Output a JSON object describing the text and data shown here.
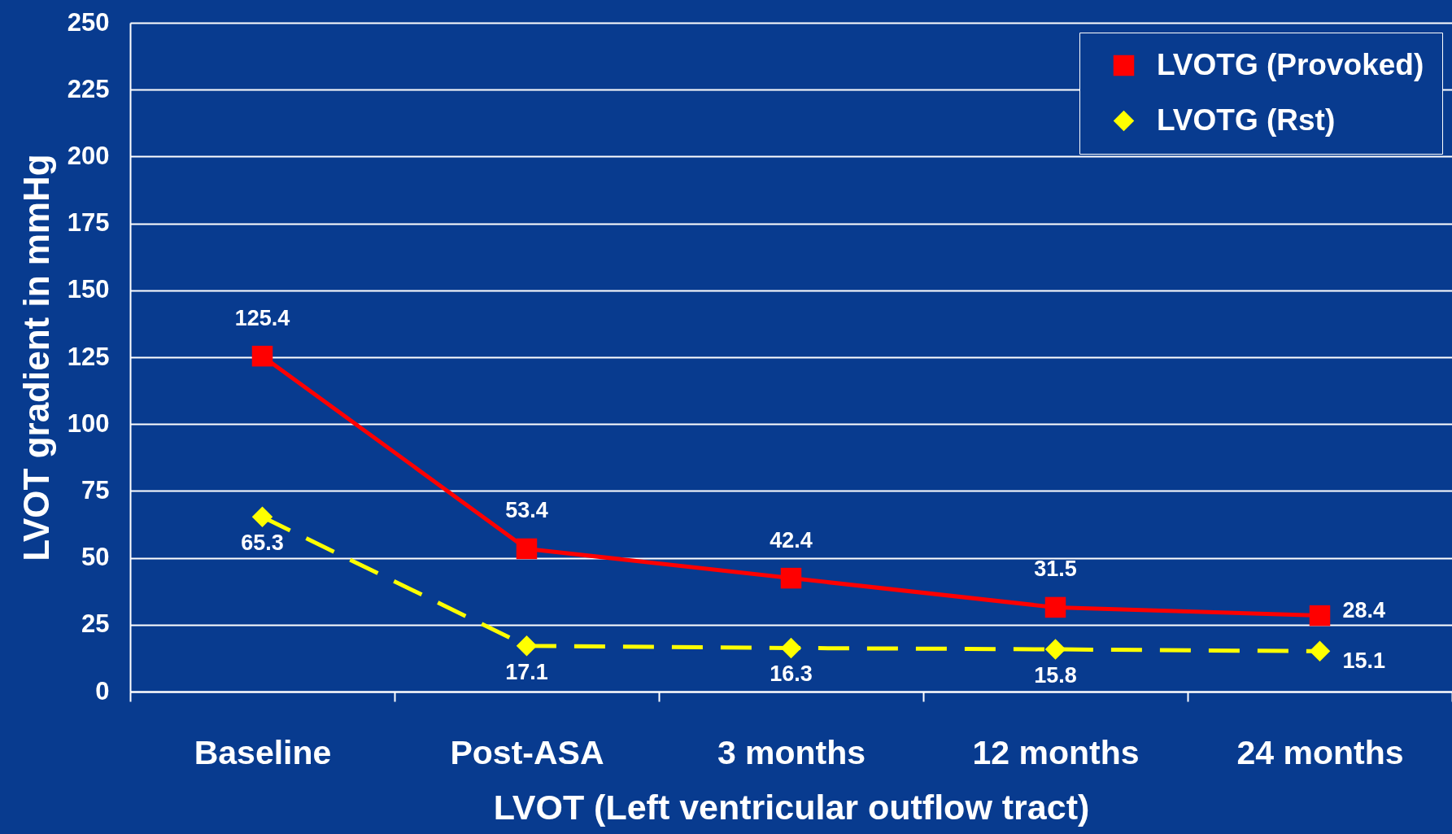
{
  "chart_data": {
    "type": "line",
    "xlabel": "LVOT (Left ventricular outflow tract)",
    "ylabel": "LVOT gradient in mmHg",
    "categories": [
      "Baseline",
      "Post-ASA",
      "3 months",
      "12 months",
      "24 months"
    ],
    "series": [
      {
        "name": "LVOTG (Provoked)",
        "color": "#ff0000",
        "values": [
          125.4,
          53.4,
          42.4,
          31.5,
          28.4
        ],
        "marker": "square",
        "line_style": "solid"
      },
      {
        "name": "LVOTG (Rst)",
        "color": "#ffff00",
        "values": [
          65.3,
          17.1,
          16.3,
          15.8,
          15.1
        ],
        "marker": "diamond",
        "line_style": "dashed"
      }
    ],
    "ylim": [
      0,
      250
    ],
    "yticks": [
      0,
      25,
      50,
      75,
      100,
      125,
      150,
      175,
      200,
      225,
      250
    ],
    "grid": "y",
    "legend": "top right",
    "data_labels": true
  }
}
